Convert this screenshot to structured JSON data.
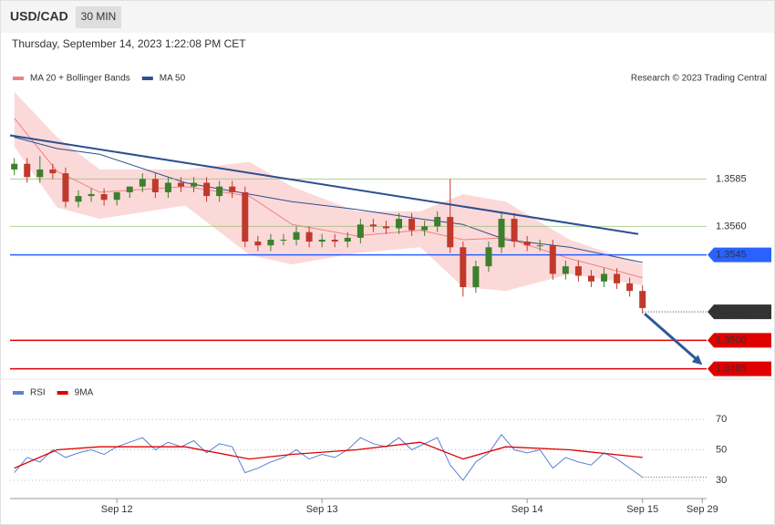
{
  "header": {
    "symbol": "USD/CAD",
    "interval": "30 MIN",
    "timestamp": "Thursday, September 14, 2023 1:22:08 PM CET"
  },
  "chart_data": [
    {
      "type": "candlestick",
      "source": "Research © 2023 Trading Central",
      "x": [
        0,
        3,
        6,
        9,
        12,
        15,
        18,
        21,
        24,
        27,
        30,
        33,
        36,
        39,
        42,
        45,
        48,
        51,
        54,
        57,
        60,
        63,
        66,
        69,
        72,
        75,
        78,
        81,
        84,
        87,
        90,
        93,
        96,
        99,
        102,
        105,
        108,
        111,
        114,
        117,
        120,
        123,
        126,
        129,
        132,
        135,
        138,
        141,
        144,
        147
      ],
      "open": [
        1.359,
        1.3593,
        1.3586,
        1.359,
        1.3588,
        1.3573,
        1.3576,
        1.3577,
        1.3574,
        1.3578,
        1.3581,
        1.3585,
        1.3578,
        1.3583,
        1.3581,
        1.3583,
        1.3576,
        1.3581,
        1.3578,
        1.3552,
        1.355,
        1.3553,
        1.3553,
        1.3557,
        1.3552,
        1.3553,
        1.3552,
        1.3554,
        1.3561,
        1.356,
        1.3559,
        1.3564,
        1.3558,
        1.356,
        1.3565,
        1.3549,
        1.3528,
        1.3539,
        1.3549,
        1.3564,
        1.3552,
        1.355,
        1.355,
        1.3535,
        1.3539,
        1.3534,
        1.3531,
        1.3535,
        1.353,
        1.3526
      ],
      "high": [
        1.3596,
        1.3596,
        1.3597,
        1.3593,
        1.3591,
        1.3579,
        1.358,
        1.358,
        1.3577,
        1.3581,
        1.3588,
        1.3588,
        1.3586,
        1.3586,
        1.3586,
        1.3586,
        1.3584,
        1.3584,
        1.3581,
        1.3555,
        1.3556,
        1.3556,
        1.356,
        1.356,
        1.3556,
        1.3556,
        1.3557,
        1.3564,
        1.3564,
        1.3563,
        1.3567,
        1.3567,
        1.3563,
        1.3568,
        1.3585,
        1.3552,
        1.3542,
        1.3552,
        1.3567,
        1.3567,
        1.3555,
        1.3553,
        1.3553,
        1.3542,
        1.3542,
        1.3537,
        1.3538,
        1.3538,
        1.3533,
        1.3529
      ],
      "low": [
        1.3587,
        1.3583,
        1.3583,
        1.3585,
        1.357,
        1.357,
        1.3573,
        1.3571,
        1.3571,
        1.3575,
        1.3578,
        1.3575,
        1.3575,
        1.3578,
        1.3578,
        1.3573,
        1.3573,
        1.3575,
        1.3549,
        1.3547,
        1.3547,
        1.355,
        1.355,
        1.3549,
        1.3549,
        1.3549,
        1.3549,
        1.3551,
        1.3557,
        1.3556,
        1.3556,
        1.3555,
        1.3555,
        1.3557,
        1.3546,
        1.3523,
        1.3525,
        1.3536,
        1.3546,
        1.3549,
        1.3547,
        1.3547,
        1.3532,
        1.3532,
        1.3531,
        1.3528,
        1.3528,
        1.3527,
        1.3523,
        1.3514
      ],
      "close": [
        1.3593,
        1.3586,
        1.359,
        1.3588,
        1.3573,
        1.3576,
        1.3577,
        1.3574,
        1.3578,
        1.3581,
        1.3585,
        1.3578,
        1.3583,
        1.3581,
        1.3583,
        1.3576,
        1.3581,
        1.3578,
        1.3552,
        1.355,
        1.3553,
        1.3553,
        1.3557,
        1.3552,
        1.3553,
        1.3552,
        1.3554,
        1.3561,
        1.356,
        1.3559,
        1.3564,
        1.3558,
        1.356,
        1.3565,
        1.3549,
        1.3528,
        1.3539,
        1.3549,
        1.3564,
        1.3552,
        1.355,
        1.355,
        1.3535,
        1.3539,
        1.3534,
        1.3531,
        1.3535,
        1.353,
        1.3526,
        1.3517
      ],
      "up_color": "#3d7f2c",
      "down_color": "#c0392b",
      "series": [
        {
          "name": "MA 20 + Bollinger Bands",
          "color": "#f08080",
          "band_color": "#fcd9d9",
          "x": [
            0,
            10,
            20,
            40,
            55,
            65,
            80,
            95,
            105,
            115,
            130,
            147
          ],
          "values": [
            1.3617,
            1.3589,
            1.3578,
            1.3581,
            1.3576,
            1.3561,
            1.3555,
            1.3558,
            1.3553,
            1.3554,
            1.3543,
            1.3533
          ],
          "upper": [
            1.3631,
            1.3607,
            1.359,
            1.359,
            1.3594,
            1.3581,
            1.3568,
            1.3568,
            1.3577,
            1.3573,
            1.3553,
            1.354
          ],
          "lower": [
            1.3602,
            1.357,
            1.3564,
            1.3571,
            1.3545,
            1.354,
            1.3546,
            1.3549,
            1.3528,
            1.3526,
            1.3535,
            1.3529
          ]
        },
        {
          "name": "MA 50",
          "color": "#2c4f8f",
          "x": [
            0,
            10,
            20,
            40,
            55,
            65,
            80,
            95,
            105,
            115,
            130,
            147
          ],
          "values": [
            1.3607,
            1.3601,
            1.3598,
            1.3583,
            1.3577,
            1.3573,
            1.3569,
            1.3564,
            1.3561,
            1.3553,
            1.3549,
            1.3541
          ]
        }
      ],
      "trendline": {
        "x": [
          -1,
          146
        ],
        "y": [
          1.3608,
          1.3556
        ],
        "color": "#2c4f8f"
      },
      "forecast": {
        "x": [
          147.5,
          161
        ],
        "y": [
          1.3514,
          1.3487
        ],
        "color": "#2c5a9a"
      },
      "levels": [
        {
          "value": 1.3585,
          "color": "#8fbc6a",
          "box": false,
          "dotted": false
        },
        {
          "value": 1.356,
          "label": "1.3560",
          "color": "#8fbc6a",
          "box": false,
          "dotted": false
        },
        {
          "value": 1.3545,
          "color": "#2962ff",
          "box": true,
          "dotted": false
        },
        {
          "value": 1.3515,
          "color": "#333333",
          "box": true,
          "dotted": true
        },
        {
          "value": 1.35,
          "label": "1.3500",
          "color": "#e00000",
          "box": true,
          "dotted": false
        },
        {
          "value": 1.3485,
          "color": "#e00000",
          "box": true,
          "dotted": false
        }
      ],
      "xlim": [
        -1,
        162
      ],
      "ylim": [
        1.348,
        1.3662
      ],
      "xticks": [
        {
          "value": 24,
          "label": "Sep 12"
        },
        {
          "value": 72,
          "label": "Sep 13"
        },
        {
          "value": 120,
          "label": "Sep 14"
        },
        {
          "value": 147,
          "label": "Sep 15"
        },
        {
          "value": 161,
          "label": "Sep 29"
        }
      ]
    },
    {
      "type": "line",
      "xlim": [
        -1,
        162
      ],
      "ylim": [
        18,
        97
      ],
      "yticks": [
        30,
        50,
        70
      ],
      "series": [
        {
          "name": "RSI",
          "color": "#5b7fd6",
          "x": [
            0,
            3,
            6,
            9,
            12,
            15,
            18,
            21,
            24,
            27,
            30,
            33,
            36,
            39,
            42,
            45,
            48,
            51,
            54,
            57,
            60,
            63,
            66,
            69,
            72,
            75,
            78,
            81,
            84,
            87,
            90,
            93,
            96,
            99,
            102,
            105,
            108,
            111,
            114,
            117,
            120,
            123,
            126,
            129,
            132,
            135,
            138,
            141,
            144,
            147
          ],
          "values": [
            35,
            45,
            42,
            50,
            45,
            48,
            50,
            47,
            52,
            55,
            58,
            50,
            55,
            52,
            56,
            48,
            54,
            52,
            35,
            38,
            42,
            45,
            50,
            44,
            47,
            45,
            50,
            58,
            54,
            52,
            58,
            50,
            54,
            58,
            40,
            30,
            42,
            48,
            60,
            50,
            48,
            50,
            38,
            45,
            42,
            40,
            48,
            44,
            38,
            32
          ]
        },
        {
          "name": "9MA",
          "color": "#e00000",
          "x": [
            0,
            10,
            20,
            40,
            55,
            65,
            80,
            95,
            105,
            115,
            130,
            147
          ],
          "values": [
            38,
            50,
            52,
            52,
            44,
            47,
            50,
            55,
            44,
            52,
            50,
            45
          ]
        }
      ]
    }
  ]
}
